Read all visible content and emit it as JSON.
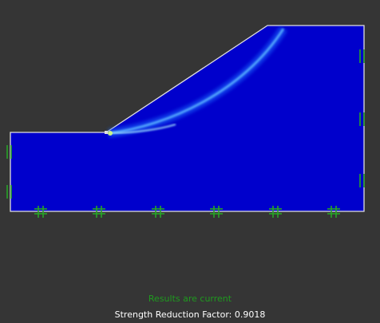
{
  "status": {
    "message": "Results are current",
    "message_color": "#1f9a1f",
    "srf_label": "Strength Reduction Factor: 0.9018",
    "srf_color": "#ffffff"
  },
  "model": {
    "fill_color": "#0000cc",
    "outline_color": "#e0e0e0",
    "shear_band_color": "#4aa8ff",
    "support_color": "#27a527",
    "background_color": "#353535"
  }
}
